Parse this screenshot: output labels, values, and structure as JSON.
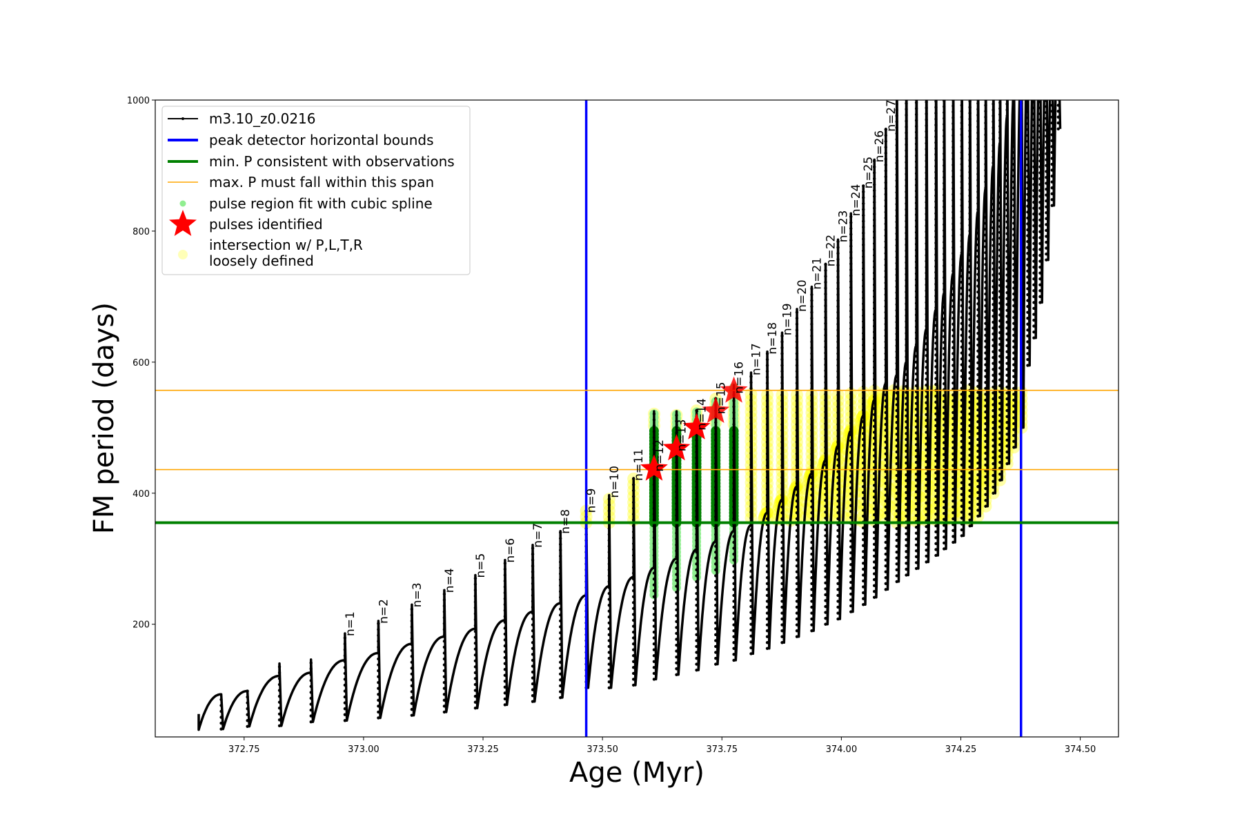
{
  "chart_data": {
    "type": "line",
    "xlabel": "Age (Myr)",
    "ylabel": "FM period (days)",
    "xlim": [
      372.564,
      374.58
    ],
    "ylim": [
      28,
      1000
    ],
    "xticks": [
      372.75,
      373.0,
      373.25,
      373.5,
      373.75,
      374.0,
      374.25,
      374.5
    ],
    "yticks": [
      200,
      400,
      600,
      800,
      1000
    ],
    "grid": false,
    "legend_placement": "upper-left",
    "colors": {
      "track": "#000000",
      "bounds": "#0000ff",
      "minP": "#008000",
      "maxP": "#ffa500",
      "spline": "#90ee90",
      "spline_core": "#008000",
      "pulse": "#ff0000",
      "loose": "#ffff00"
    },
    "legend": [
      {
        "label": "m3.10_z0.0216",
        "kind": "line-dot"
      },
      {
        "label": "peak detector horizontal bounds",
        "kind": "blue-line"
      },
      {
        "label": "min. P consistent with observations",
        "kind": "green-line"
      },
      {
        "label": "max. P must fall within this span",
        "kind": "orange-line"
      },
      {
        "label": "pulse region fit with cubic spline",
        "kind": "lightgreen-dot"
      },
      {
        "label": "pulses identified",
        "kind": "red-star"
      },
      {
        "label": "intersection w/ P,L,T,R",
        "label2": "loosely defined",
        "kind": "yellow-dot"
      }
    ],
    "vertical_bounds": [
      373.466,
      374.376
    ],
    "min_P_line": 355,
    "max_P_span": [
      436,
      557
    ],
    "track_start": {
      "age": 372.655,
      "P_top": 63,
      "P_bottom": 39
    },
    "pulses": [
      {
        "n": "",
        "age": 372.702,
        "pre": 93,
        "peak": 93,
        "dip": 40
      },
      {
        "n": "",
        "age": 372.757,
        "pre": 98,
        "peak": 98,
        "dip": 44
      },
      {
        "n": "",
        "age": 372.824,
        "pre": 121,
        "peak": 140,
        "dip": 45
      },
      {
        "n": "",
        "age": 372.89,
        "pre": 126,
        "peak": 146,
        "dip": 51
      },
      {
        "n": "n=1",
        "age": 372.961,
        "pre": 145,
        "peak": 186,
        "dip": 53
      },
      {
        "n": "n=2",
        "age": 373.031,
        "pre": 156,
        "peak": 205,
        "dip": 57
      },
      {
        "n": "n=3",
        "age": 373.101,
        "pre": 170,
        "peak": 230,
        "dip": 61
      },
      {
        "n": "n=4",
        "age": 373.169,
        "pre": 181,
        "peak": 252,
        "dip": 66
      },
      {
        "n": "n=5",
        "age": 373.234,
        "pre": 193,
        "peak": 275,
        "dip": 72
      },
      {
        "n": "n=6",
        "age": 373.296,
        "pre": 206,
        "peak": 298,
        "dip": 77
      },
      {
        "n": "n=7",
        "age": 373.354,
        "pre": 219,
        "peak": 321,
        "dip": 82
      },
      {
        "n": "n=8",
        "age": 373.412,
        "pre": 232,
        "peak": 342,
        "dip": 88
      },
      {
        "n": "n=9",
        "age": 373.466,
        "pre": 244,
        "peak": 374,
        "dip": 103
      },
      {
        "n": "n=10",
        "age": 373.514,
        "pre": 258,
        "peak": 397,
        "dip": 103
      },
      {
        "n": "n=11",
        "age": 373.565,
        "pre": 272,
        "peak": 423,
        "dip": 107
      },
      {
        "n": "n=12",
        "age": 373.608,
        "pre": 286,
        "peak": 525,
        "dip": 116,
        "spline_low": 245,
        "star": 437
      },
      {
        "n": "n=13",
        "age": 373.655,
        "pre": 300,
        "peak": 525,
        "dip": 123,
        "spline_low": 256,
        "star": 468
      },
      {
        "n": "n=14",
        "age": 373.697,
        "pre": 314,
        "peak": 527,
        "dip": 130,
        "spline_low": 272,
        "star": 500
      },
      {
        "n": "n=15",
        "age": 373.737,
        "pre": 326,
        "peak": 545,
        "dip": 139,
        "spline_low": 282,
        "star": 525
      },
      {
        "n": "n=16",
        "age": 373.775,
        "pre": 342,
        "peak": 565,
        "dip": 145,
        "spline_low": 298,
        "star": 556
      },
      {
        "n": "n=17",
        "age": 373.811,
        "pre": 351,
        "peak": 584,
        "dip": 155
      },
      {
        "n": "n=18",
        "age": 373.845,
        "pre": 370,
        "peak": 616,
        "dip": 163
      },
      {
        "n": "n=19",
        "age": 373.876,
        "pre": 390,
        "peak": 645,
        "dip": 172
      },
      {
        "n": "n=20",
        "age": 373.907,
        "pre": 410,
        "peak": 681,
        "dip": 181
      },
      {
        "n": "n=21",
        "age": 373.938,
        "pre": 430,
        "peak": 715,
        "dip": 190
      },
      {
        "n": "n=22",
        "age": 373.967,
        "pre": 450,
        "peak": 750,
        "dip": 200
      },
      {
        "n": "n=23",
        "age": 373.993,
        "pre": 472,
        "peak": 787,
        "dip": 208
      },
      {
        "n": "n=24",
        "age": 374.02,
        "pre": 495,
        "peak": 827,
        "dip": 219
      },
      {
        "n": "n=25",
        "age": 374.046,
        "pre": 518,
        "peak": 869,
        "dip": 230
      },
      {
        "n": "n=26",
        "age": 374.069,
        "pre": 542,
        "peak": 909,
        "dip": 241
      },
      {
        "n": "n=27",
        "age": 374.093,
        "pre": 567,
        "peak": 956,
        "dip": 253
      },
      {
        "n": "",
        "age": 374.116,
        "pre": 580,
        "peak": 1100,
        "dip": 265
      },
      {
        "n": "",
        "age": 374.136,
        "pre": 600,
        "peak": 1100,
        "dip": 275
      },
      {
        "n": "",
        "age": 374.157,
        "pre": 625,
        "peak": 1100,
        "dip": 285
      },
      {
        "n": "",
        "age": 374.178,
        "pre": 650,
        "peak": 1100,
        "dip": 295
      },
      {
        "n": "",
        "age": 374.198,
        "pre": 680,
        "peak": 1100,
        "dip": 305
      },
      {
        "n": "",
        "age": 374.215,
        "pre": 705,
        "peak": 1100,
        "dip": 315
      },
      {
        "n": "",
        "age": 374.234,
        "pre": 735,
        "peak": 1100,
        "dip": 325
      },
      {
        "n": "",
        "age": 374.252,
        "pre": 765,
        "peak": 1100,
        "dip": 335
      },
      {
        "n": "",
        "age": 374.269,
        "pre": 795,
        "peak": 1100,
        "dip": 350
      },
      {
        "n": "",
        "age": 374.286,
        "pre": 830,
        "peak": 1100,
        "dip": 365
      },
      {
        "n": "",
        "age": 374.302,
        "pre": 865,
        "peak": 1100,
        "dip": 380
      },
      {
        "n": "",
        "age": 374.318,
        "pre": 900,
        "peak": 1100,
        "dip": 400
      },
      {
        "n": "",
        "age": 374.332,
        "pre": 935,
        "peak": 1100,
        "dip": 420
      },
      {
        "n": "",
        "age": 374.347,
        "pre": 975,
        "peak": 1100,
        "dip": 445
      },
      {
        "n": "",
        "age": 374.361,
        "pre": 1010,
        "peak": 1100,
        "dip": 470
      },
      {
        "n": "",
        "age": 374.377,
        "pre": 1050,
        "peak": 1100,
        "dip": 500
      },
      {
        "n": "",
        "age": 374.39,
        "pre": 1100,
        "peak": 1100,
        "dip": 595
      },
      {
        "n": "",
        "age": 374.403,
        "pre": 1100,
        "peak": 1100,
        "dip": 637
      },
      {
        "n": "",
        "age": 374.416,
        "pre": 1100,
        "peak": 1100,
        "dip": 691
      },
      {
        "n": "",
        "age": 374.429,
        "pre": 1100,
        "peak": 1100,
        "dip": 756
      },
      {
        "n": "",
        "age": 374.441,
        "pre": 1100,
        "peak": 1100,
        "dip": 839
      },
      {
        "n": "",
        "age": 374.454,
        "pre": 1100,
        "peak": 1100,
        "dip": 956
      }
    ]
  }
}
